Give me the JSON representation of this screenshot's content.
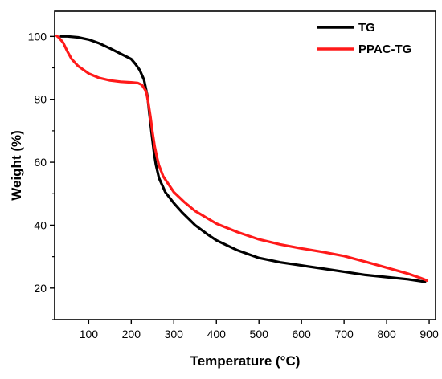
{
  "chart_data": {
    "type": "line",
    "xlabel": "Temperature (°C)",
    "ylabel": "Weight (%)",
    "xlim": [
      20,
      915
    ],
    "ylim": [
      10,
      108
    ],
    "xticks": [
      100,
      200,
      300,
      400,
      500,
      600,
      700,
      800,
      900
    ],
    "yticks": [
      20,
      40,
      60,
      80,
      100
    ],
    "grid": false,
    "legend_position": "top-right",
    "series": [
      {
        "name": "TG",
        "color": "#000000",
        "x": [
          35,
          50,
          75,
          100,
          125,
          150,
          175,
          200,
          210,
          220,
          230,
          238,
          243,
          248,
          253,
          258,
          265,
          280,
          300,
          320,
          350,
          380,
          400,
          450,
          500,
          550,
          600,
          650,
          700,
          750,
          800,
          850,
          880,
          890
        ],
        "y": [
          100,
          100,
          99.7,
          99,
          97.8,
          96.2,
          94.5,
          92.8,
          91.2,
          89.3,
          86.2,
          81,
          75,
          69,
          63.5,
          59.2,
          55,
          50.5,
          47,
          44,
          40,
          37,
          35.2,
          32,
          29.6,
          28.2,
          27.2,
          26.2,
          25.2,
          24.2,
          23.5,
          22.8,
          22.2,
          22
        ]
      },
      {
        "name": "PPAC-TG",
        "color": "#ff1a1a",
        "x": [
          25,
          30,
          40,
          50,
          60,
          75,
          100,
          125,
          150,
          175,
          200,
          215,
          225,
          235,
          240,
          245,
          250,
          255,
          260,
          265,
          275,
          300,
          325,
          350,
          400,
          450,
          500,
          550,
          600,
          650,
          700,
          750,
          800,
          850,
          880,
          895
        ],
        "y": [
          100.2,
          99.6,
          98,
          95.2,
          92.8,
          90.6,
          88.2,
          86.8,
          86,
          85.6,
          85.4,
          85.2,
          84.6,
          82.5,
          79,
          74.5,
          69.5,
          65,
          61.8,
          59,
          55.5,
          50.5,
          47.3,
          44.5,
          40.5,
          37.8,
          35.5,
          33.9,
          32.6,
          31.5,
          30.2,
          28.4,
          26.5,
          24.6,
          23.2,
          22.4
        ]
      }
    ]
  }
}
